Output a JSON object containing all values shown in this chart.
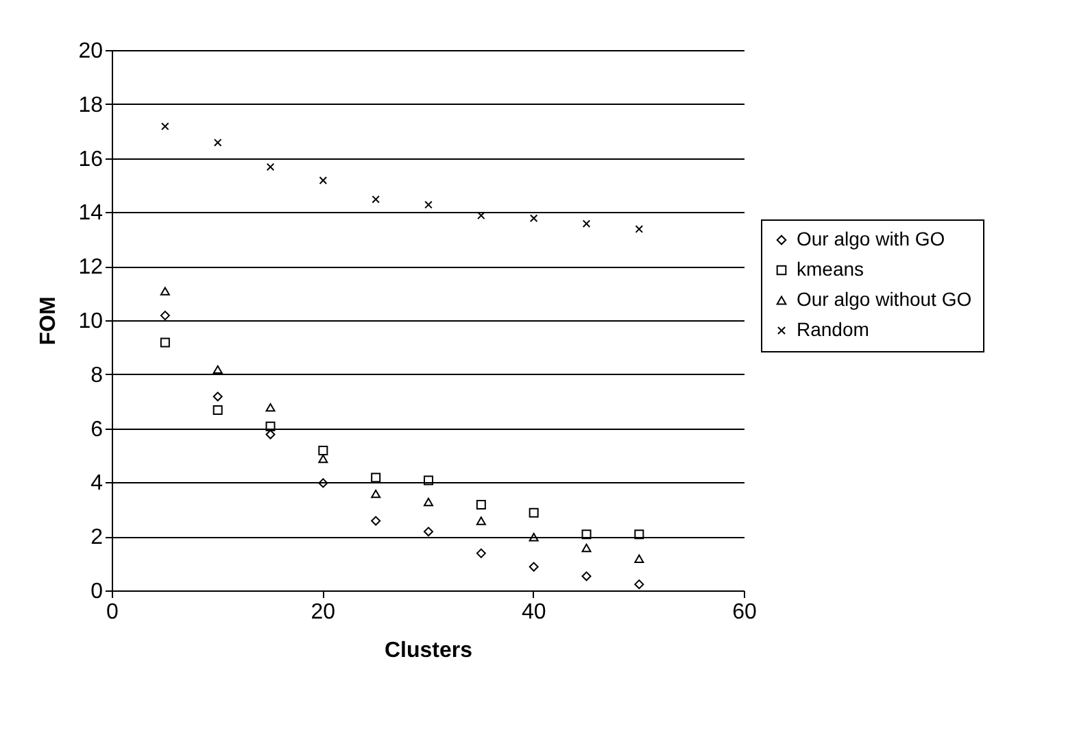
{
  "chart_data": {
    "type": "scatter",
    "xlabel": "Clusters",
    "ylabel": "FOM",
    "x": [
      5,
      10,
      15,
      20,
      25,
      30,
      35,
      40,
      45,
      50
    ],
    "series": [
      {
        "name": "Our algo with GO",
        "color": "#000000",
        "marker": "diamond",
        "values": [
          10.2,
          7.2,
          5.8,
          4.0,
          2.6,
          2.2,
          1.4,
          0.9,
          0.55,
          0.25
        ]
      },
      {
        "name": "kmeans",
        "color": "#000000",
        "marker": "square",
        "values": [
          9.2,
          6.7,
          6.1,
          5.2,
          4.2,
          4.1,
          3.2,
          2.9,
          2.1,
          2.1
        ]
      },
      {
        "name": "Our algo without GO",
        "color": "#000000",
        "marker": "triangle",
        "values": [
          11.1,
          8.2,
          6.8,
          4.9,
          3.6,
          3.3,
          2.6,
          2.0,
          1.6,
          1.2
        ]
      },
      {
        "name": "Random",
        "color": "#000000",
        "marker": "cross",
        "values": [
          17.2,
          16.6,
          15.7,
          15.2,
          14.5,
          14.3,
          13.9,
          13.8,
          13.6,
          13.4
        ]
      }
    ],
    "xlim": [
      0,
      60
    ],
    "xticks": [
      0,
      20,
      40,
      60
    ],
    "ylim": [
      0,
      20
    ],
    "yticks": [
      0,
      2,
      4,
      6,
      8,
      10,
      12,
      14,
      16,
      18,
      20
    ],
    "grid": "y",
    "legend": "right"
  }
}
